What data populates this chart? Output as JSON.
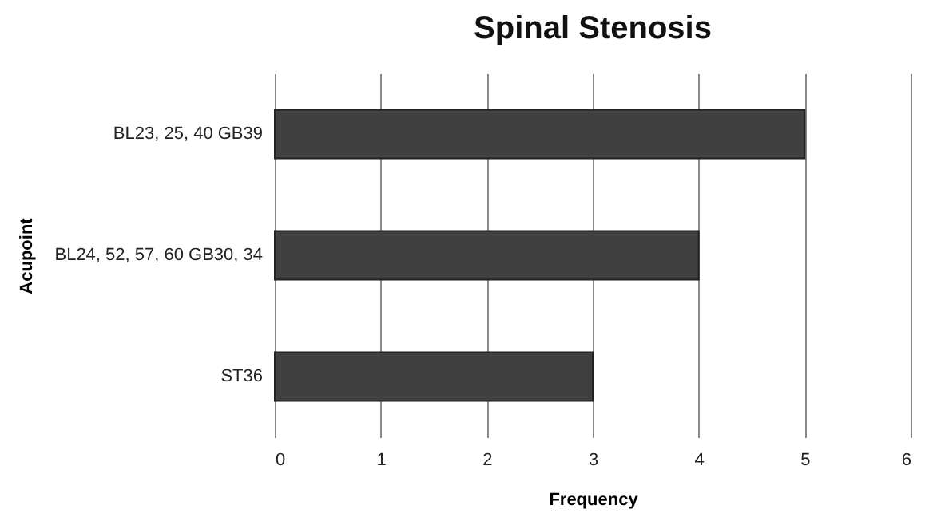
{
  "chart_data": {
    "type": "bar",
    "orientation": "horizontal",
    "title": "Spinal Stenosis",
    "xlabel": "Frequency",
    "ylabel": "Acupoint",
    "categories": [
      "BL23, 25, 40 GB39",
      "BL24, 52, 57, 60 GB30, 34",
      "ST36"
    ],
    "values": [
      5,
      4,
      3
    ],
    "color": "#404040",
    "xlim": [
      0,
      6
    ],
    "xticks": [
      0,
      1,
      2,
      3,
      4,
      5,
      6
    ],
    "grid": "x"
  }
}
